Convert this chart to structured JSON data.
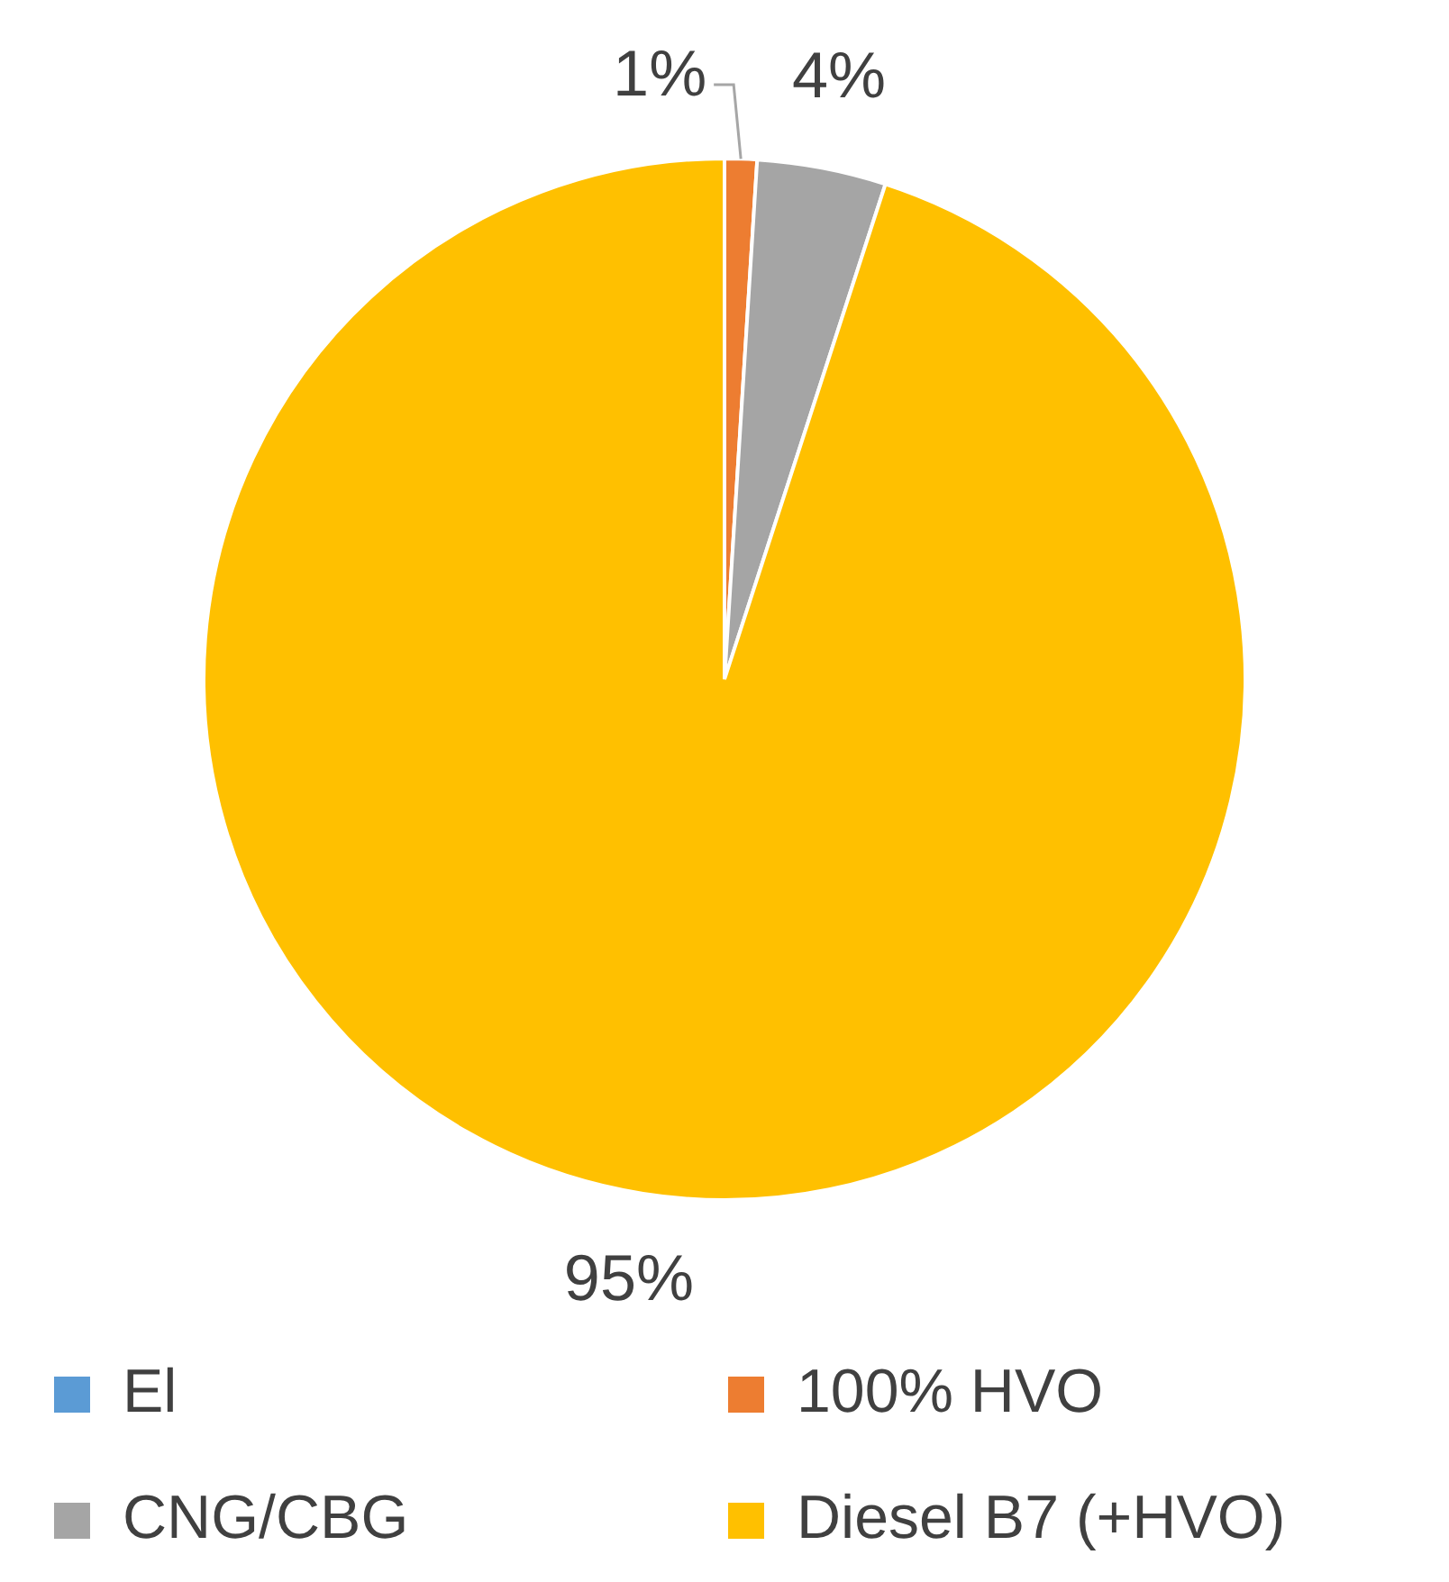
{
  "chart_data": {
    "type": "pie",
    "categories": [
      "El",
      "100% HVO",
      "CNG/CBG",
      "Diesel B7 (+HVO)"
    ],
    "values": [
      0,
      1,
      4,
      95
    ],
    "value_labels": [
      null,
      "1%",
      "4%",
      "95%"
    ],
    "colors": [
      "#5b9bd5",
      "#ed7d31",
      "#a5a5a5",
      "#ffc000"
    ],
    "legend": "bottom"
  }
}
